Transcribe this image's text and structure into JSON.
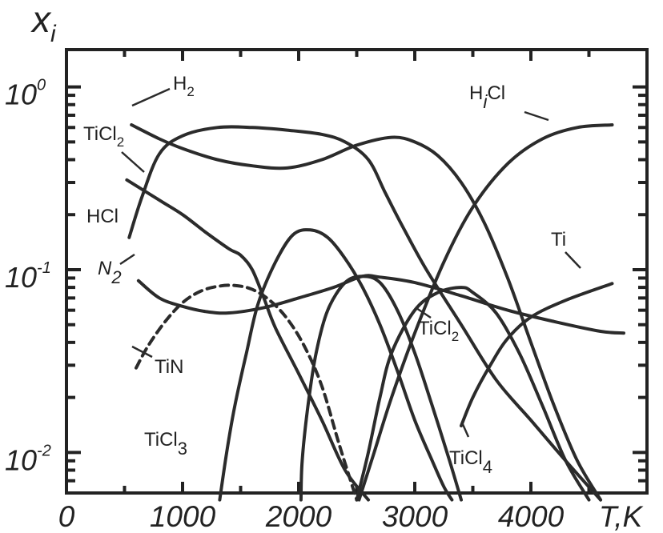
{
  "chart_data": {
    "type": "line",
    "ylabel": "x_i",
    "xlabel": "T,K",
    "y_scale": "log",
    "xlim": [
      0,
      5000
    ],
    "ylim": [
      0.006,
      1.6
    ],
    "x_ticks": [
      "0",
      "1000",
      "2000",
      "3000",
      "4000"
    ],
    "y_ticks": [
      {
        "base": "10",
        "exp": "0",
        "value": 1
      },
      {
        "base": "10",
        "exp": "-1",
        "value": 0.1
      },
      {
        "base": "10",
        "exp": "-2",
        "value": 0.01
      }
    ],
    "series": [
      {
        "name": "H2",
        "style": "solid",
        "points": [
          [
            560,
            0.62
          ],
          [
            800,
            0.52
          ],
          [
            1000,
            0.46
          ],
          [
            1300,
            0.4
          ],
          [
            1600,
            0.37
          ],
          [
            1900,
            0.36
          ],
          [
            2200,
            0.4
          ],
          [
            2500,
            0.48
          ],
          [
            2800,
            0.53
          ],
          [
            3000,
            0.5
          ],
          [
            3200,
            0.42
          ],
          [
            3400,
            0.3
          ],
          [
            3600,
            0.18
          ],
          [
            3800,
            0.09
          ],
          [
            4000,
            0.04
          ],
          [
            4200,
            0.018
          ],
          [
            4400,
            0.009
          ],
          [
            4600,
            0.0055
          ]
        ]
      },
      {
        "name": "HCl",
        "style": "solid",
        "points": [
          [
            540,
            0.15
          ],
          [
            650,
            0.25
          ],
          [
            800,
            0.43
          ],
          [
            1000,
            0.54
          ],
          [
            1300,
            0.6
          ],
          [
            1600,
            0.6
          ],
          [
            1900,
            0.58
          ],
          [
            2200,
            0.55
          ],
          [
            2400,
            0.5
          ],
          [
            2600,
            0.4
          ],
          [
            2750,
            0.26
          ],
          [
            2900,
            0.17
          ],
          [
            3100,
            0.1
          ],
          [
            3400,
            0.05
          ],
          [
            3700,
            0.025
          ],
          [
            4000,
            0.015
          ],
          [
            4300,
            0.009
          ],
          [
            4600,
            0.0055
          ]
        ]
      },
      {
        "name": "TiCl2",
        "style": "solid",
        "points": [
          [
            520,
            0.31
          ],
          [
            800,
            0.24
          ],
          [
            1000,
            0.2
          ],
          [
            1200,
            0.16
          ],
          [
            1400,
            0.13
          ],
          [
            1500,
            0.12
          ],
          [
            1600,
            0.1
          ],
          [
            1700,
            0.07
          ],
          [
            1800,
            0.048
          ],
          [
            2000,
            0.027
          ],
          [
            2200,
            0.015
          ],
          [
            2400,
            0.008
          ],
          [
            2600,
            0.0055
          ]
        ]
      },
      {
        "name": "N2",
        "style": "solid",
        "points": [
          [
            620,
            0.087
          ],
          [
            800,
            0.07
          ],
          [
            1000,
            0.063
          ],
          [
            1200,
            0.059
          ],
          [
            1400,
            0.058
          ],
          [
            1700,
            0.062
          ],
          [
            2000,
            0.07
          ],
          [
            2300,
            0.08
          ],
          [
            2550,
            0.092
          ],
          [
            2700,
            0.091
          ],
          [
            3000,
            0.085
          ],
          [
            3400,
            0.072
          ],
          [
            3800,
            0.06
          ],
          [
            4200,
            0.052
          ],
          [
            4600,
            0.046
          ],
          [
            4800,
            0.045
          ]
        ]
      },
      {
        "name": "TiN",
        "style": "dashed",
        "points": [
          [
            600,
            0.029
          ],
          [
            700,
            0.038
          ],
          [
            850,
            0.052
          ],
          [
            1000,
            0.066
          ],
          [
            1150,
            0.076
          ],
          [
            1300,
            0.081
          ],
          [
            1450,
            0.082
          ],
          [
            1600,
            0.078
          ],
          [
            1750,
            0.068
          ],
          [
            1900,
            0.054
          ],
          [
            2050,
            0.038
          ],
          [
            2200,
            0.023
          ],
          [
            2350,
            0.011
          ],
          [
            2500,
            0.0055
          ]
        ]
      },
      {
        "name": "TiCl3",
        "style": "solid",
        "points": [
          [
            1320,
            0.0055
          ],
          [
            1380,
            0.01
          ],
          [
            1450,
            0.018
          ],
          [
            1550,
            0.035
          ],
          [
            1650,
            0.065
          ],
          [
            1800,
            0.11
          ],
          [
            1950,
            0.155
          ],
          [
            2100,
            0.165
          ],
          [
            2250,
            0.15
          ],
          [
            2400,
            0.115
          ],
          [
            2550,
            0.08
          ],
          [
            2700,
            0.05
          ],
          [
            2850,
            0.028
          ],
          [
            3000,
            0.015
          ],
          [
            3150,
            0.009
          ],
          [
            3250,
            0.0065
          ],
          [
            3320,
            0.0055
          ]
        ]
      },
      {
        "name": "TiCl2",
        "style": "solid",
        "points": [
          [
            2020,
            0.0055
          ],
          [
            2030,
            0.009
          ],
          [
            2080,
            0.018
          ],
          [
            2150,
            0.035
          ],
          [
            2250,
            0.06
          ],
          [
            2400,
            0.085
          ],
          [
            2550,
            0.092
          ],
          [
            2700,
            0.085
          ],
          [
            2850,
            0.06
          ],
          [
            3000,
            0.035
          ],
          [
            3150,
            0.018
          ],
          [
            3300,
            0.009
          ],
          [
            3400,
            0.0055
          ]
        ]
      },
      {
        "name": "TiCl4",
        "style": "solid",
        "points": [
          [
            2500,
            0.0055
          ],
          [
            2600,
            0.01
          ],
          [
            2700,
            0.02
          ],
          [
            2800,
            0.035
          ],
          [
            3000,
            0.06
          ],
          [
            3200,
            0.075
          ],
          [
            3400,
            0.08
          ],
          [
            3500,
            0.075
          ],
          [
            3700,
            0.058
          ],
          [
            3900,
            0.035
          ],
          [
            4100,
            0.018
          ],
          [
            4300,
            0.009
          ],
          [
            4500,
            0.0055
          ]
        ]
      },
      {
        "name": "HiCl",
        "style": "solid",
        "points": [
          [
            2520,
            0.0055
          ],
          [
            2650,
            0.01
          ],
          [
            2800,
            0.02
          ],
          [
            3000,
            0.045
          ],
          [
            3250,
            0.11
          ],
          [
            3500,
            0.22
          ],
          [
            3800,
            0.38
          ],
          [
            4100,
            0.52
          ],
          [
            4400,
            0.6
          ],
          [
            4700,
            0.62
          ]
        ]
      },
      {
        "name": "Ti",
        "style": "solid",
        "points": [
          [
            3400,
            0.014
          ],
          [
            3500,
            0.02
          ],
          [
            3650,
            0.03
          ],
          [
            3800,
            0.042
          ],
          [
            4000,
            0.055
          ],
          [
            4300,
            0.068
          ],
          [
            4700,
            0.084
          ]
        ]
      }
    ],
    "annotations": [
      {
        "text": "H2",
        "main": "H",
        "sub": "2"
      },
      {
        "text": "TiCl2",
        "main": "TiCl",
        "sub": "2"
      },
      {
        "text": "HCl",
        "main": "HCl",
        "sub": ""
      },
      {
        "text": "N2",
        "main": "N",
        "sub": "2"
      },
      {
        "text": "TiN",
        "main": "TiN",
        "sub": ""
      },
      {
        "text": "TiCl3",
        "main": "TiCl",
        "sub": "3"
      },
      {
        "text": "TiCl2",
        "main": "TiCl",
        "sub": "2"
      },
      {
        "text": "HiCl",
        "main": "H",
        "sub": "i",
        "tail": "Cl"
      },
      {
        "text": "Ti",
        "main": "Ti",
        "sub": ""
      },
      {
        "text": "TiCl4",
        "main": "TiCl",
        "sub": "4"
      }
    ],
    "grid": false,
    "legend": "none"
  }
}
